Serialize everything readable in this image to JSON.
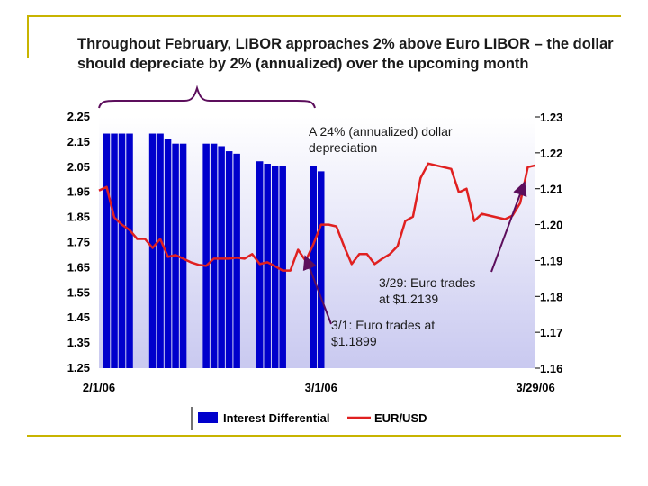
{
  "title": "Throughout February, LIBOR approaches  2% above Euro LIBOR – the dollar should depreciate by 2% (annualized) over the upcoming month",
  "colors": {
    "accent": "#c8b400",
    "bars": "#0000cc",
    "line": "#e02020",
    "arrow": "#5c0e5c",
    "plot_bg_top": "#ffffff",
    "plot_bg_bottom": "#c9c9f0"
  },
  "chart_data": {
    "type": "bar+line",
    "left_axis": {
      "ylim": [
        1.25,
        2.25
      ],
      "ticks": [
        "2.25",
        "2.15",
        "2.05",
        "1.95",
        "1.85",
        "1.75",
        "1.65",
        "1.55",
        "1.45",
        "1.35",
        "1.25"
      ]
    },
    "right_axis": {
      "ylim": [
        1.16,
        1.23
      ],
      "ticks": [
        "1.23",
        "1.22",
        "1.21",
        "1.20",
        "1.19",
        "1.18",
        "1.17",
        "1.16"
      ]
    },
    "x_ticks": [
      "2/1/06",
      "3/1/06",
      "3/29/06"
    ],
    "series": [
      {
        "name": "Interest Differential",
        "type": "bar",
        "axis": "left",
        "x": [
          1,
          2,
          3,
          4,
          7,
          8,
          9,
          10,
          11,
          14,
          15,
          16,
          17,
          18,
          21,
          22,
          23,
          24,
          28,
          29
        ],
        "values": [
          2.18,
          2.18,
          2.18,
          2.18,
          2.18,
          2.18,
          2.16,
          2.14,
          2.14,
          2.14,
          2.14,
          2.13,
          2.11,
          2.1,
          2.07,
          2.06,
          2.05,
          2.05,
          2.05,
          2.03
        ]
      },
      {
        "name": "EUR/USD",
        "type": "line",
        "axis": "right",
        "x": [
          0,
          1,
          2,
          3,
          4,
          5,
          6,
          7,
          8,
          9,
          10,
          11,
          12,
          13,
          14,
          15,
          16,
          17,
          18,
          19,
          20,
          21,
          22,
          23,
          24,
          25,
          26,
          27,
          28,
          29,
          30,
          31,
          32,
          33,
          34,
          35,
          36,
          37,
          38,
          39,
          40,
          41,
          42,
          43,
          44,
          45,
          46,
          47,
          48,
          49,
          50,
          51,
          52,
          53,
          54,
          55,
          56,
          57
        ],
        "values": [
          1.2095,
          1.2105,
          1.202,
          1.2,
          1.1985,
          1.196,
          1.196,
          1.1935,
          1.196,
          1.191,
          1.1915,
          1.1905,
          1.1895,
          1.1888,
          1.1885,
          1.1905,
          1.1905,
          1.1905,
          1.1908,
          1.1905,
          1.1918,
          1.189,
          1.1895,
          1.1884,
          1.1872,
          1.1872,
          1.193,
          1.1899,
          1.1945,
          1.2,
          1.2,
          1.1995,
          1.194,
          1.189,
          1.1918,
          1.1918,
          1.189,
          1.1905,
          1.1918,
          1.194,
          1.201,
          1.2022,
          1.213,
          1.217,
          1.2165,
          1.216,
          1.2155,
          1.209,
          1.21,
          1.201,
          1.203,
          1.2025,
          1.202,
          1.2015,
          1.2025,
          1.206,
          1.216,
          1.2165
        ]
      }
    ]
  },
  "annotations": {
    "depreciation_line1": "A 24% (annualized) dollar",
    "depreciation_line2": "depreciation",
    "euro_329_line1": "3/29: Euro trades",
    "euro_329_line2": "at $1.2139",
    "euro_31_line1": "3/1: Euro trades at",
    "euro_31_line2": "$1.1899"
  },
  "legend": {
    "bar": "Interest Differential",
    "line": "EUR/USD"
  }
}
